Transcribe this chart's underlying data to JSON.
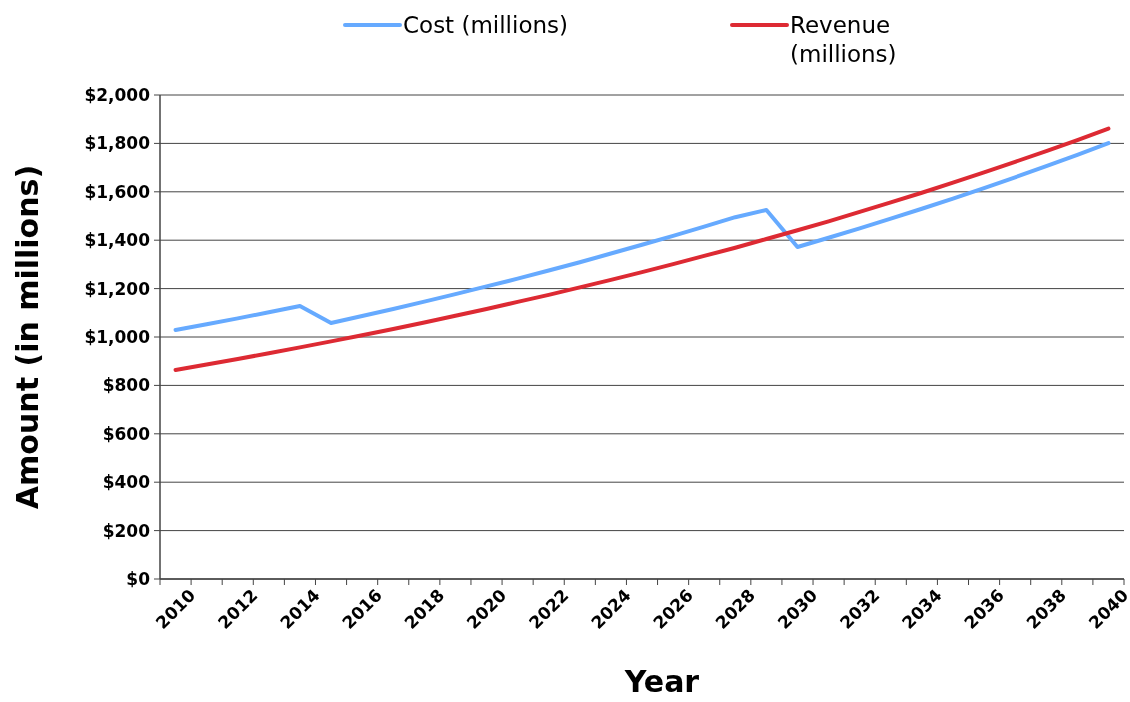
{
  "chart_data": {
    "type": "line",
    "xlabel": "Year",
    "ylabel": "Amount (in millions)",
    "categories": [
      "2010",
      null,
      "2012",
      null,
      "2014",
      null,
      "2016",
      null,
      "2018",
      null,
      "2020",
      null,
      "2022",
      null,
      "2024",
      null,
      "2026",
      null,
      "2028",
      null,
      "2030",
      null,
      "2032",
      null,
      "2034",
      null,
      "2036",
      null,
      "2038",
      null,
      "2040"
    ],
    "series": [
      {
        "name": "Cost (millions)",
        "color": "#66aaff",
        "values": [
          1029,
          1053,
          1077,
          1102,
          1128,
          1058,
          1087,
          1116,
          1146,
          1177,
          1209,
          1241,
          1275,
          1309,
          1345,
          1381,
          1418,
          1456,
          1495,
          1525,
          1372,
          1410,
          1449,
          1489,
          1530,
          1572,
          1615,
          1660,
          1706,
          1753,
          1801
        ]
      },
      {
        "name": "Revenue (millions)",
        "color": "#dd2a33",
        "values": [
          864,
          886,
          909,
          933,
          957,
          982,
          1007,
          1033,
          1060,
          1088,
          1116,
          1145,
          1174,
          1205,
          1236,
          1268,
          1301,
          1335,
          1369,
          1405,
          1441,
          1478,
          1517,
          1556,
          1596,
          1638,
          1680,
          1724,
          1768,
          1814,
          1861
        ]
      }
    ],
    "ylim": [
      0,
      2000
    ],
    "yticks": [
      {
        "value": 0,
        "label": "$0"
      },
      {
        "value": 200,
        "label": "$200"
      },
      {
        "value": 400,
        "label": "$400"
      },
      {
        "value": 600,
        "label": "$600"
      },
      {
        "value": 800,
        "label": "$800"
      },
      {
        "value": 1000,
        "label": "$1,000"
      },
      {
        "value": 1200,
        "label": "$1,200"
      },
      {
        "value": 1400,
        "label": "$1,400"
      },
      {
        "value": 1600,
        "label": "$1,600"
      },
      {
        "value": 1800,
        "label": "$1,800"
      },
      {
        "value": 2000,
        "label": "$2,000"
      }
    ],
    "grid": "y",
    "legend": "top",
    "marker": "none",
    "line_style": "solid"
  }
}
